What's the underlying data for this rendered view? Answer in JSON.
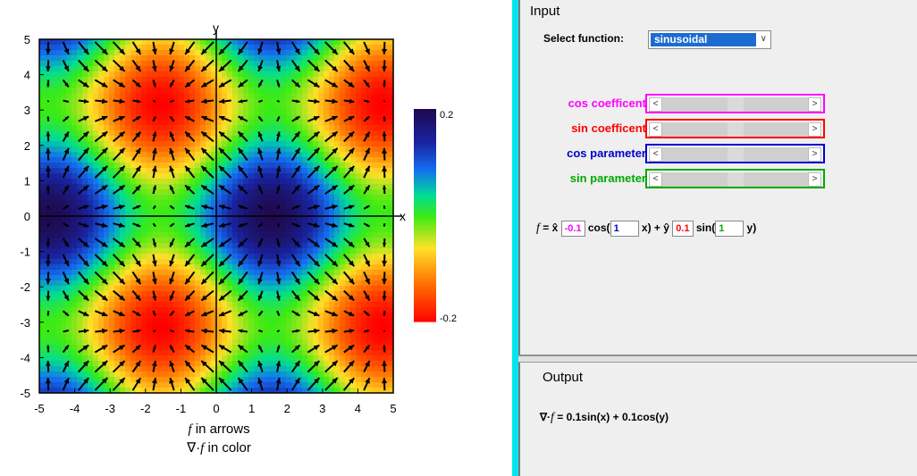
{
  "plot": {
    "axis_x_name": "x",
    "axis_y_name": "y",
    "x_ticks": [
      "-5",
      "-4",
      "-3",
      "-2",
      "-1",
      "0",
      "1",
      "2",
      "3",
      "4",
      "5"
    ],
    "y_ticks": [
      "5",
      "4",
      "3",
      "2",
      "1",
      "0",
      "-1",
      "-2",
      "-3",
      "-4",
      "-5"
    ],
    "caption_line1_sym": "f",
    "caption_line1_text": " in arrows",
    "caption_line2_op": "∇·",
    "caption_line2_sym": "f",
    "caption_line2_text": " in color",
    "colorbar_max": "0.2",
    "colorbar_min": "-0.2"
  },
  "chart_data": {
    "type": "heatmap",
    "xlabel": "x",
    "ylabel": "y",
    "xlim": [
      -5,
      5
    ],
    "ylim": [
      -5,
      5
    ],
    "color_field": "0.1 sin(x) + 0.1 cos(y)",
    "color_range": [
      -0.2,
      0.2
    ],
    "vector_field": {
      "fx_coef": -0.1,
      "fx_param": 1,
      "fy_coef": 0.1,
      "fy_param": 1
    },
    "arrow_grid_step": 0.5
  },
  "input": {
    "title": "Input",
    "select_label": "Select function:",
    "select_value": "sinusoidal",
    "sliders": [
      {
        "label": "cos coefficent",
        "color": "#ff00ff",
        "value": 0.5
      },
      {
        "label": "sin coefficent",
        "color": "#ff0000",
        "value": 0.5
      },
      {
        "label": "cos parameter",
        "color": "#0000cc",
        "value": 0.5
      },
      {
        "label": "sin parameter",
        "color": "#00aa00",
        "value": 0.5
      }
    ],
    "formula": {
      "lhs": "f",
      "eq": " = x̂ ",
      "cos_coef": "-0.1",
      "cos_word": " cos(",
      "cos_param": "1",
      "mid": " x) + ŷ ",
      "sin_coef": "0.1",
      "sin_word": " sin(",
      "sin_param": "1",
      "end": " y)"
    }
  },
  "output": {
    "title": "Output",
    "op": "∇·",
    "sym": "f",
    "result": " = 0.1sin(x) + 0.1cos(y)"
  }
}
